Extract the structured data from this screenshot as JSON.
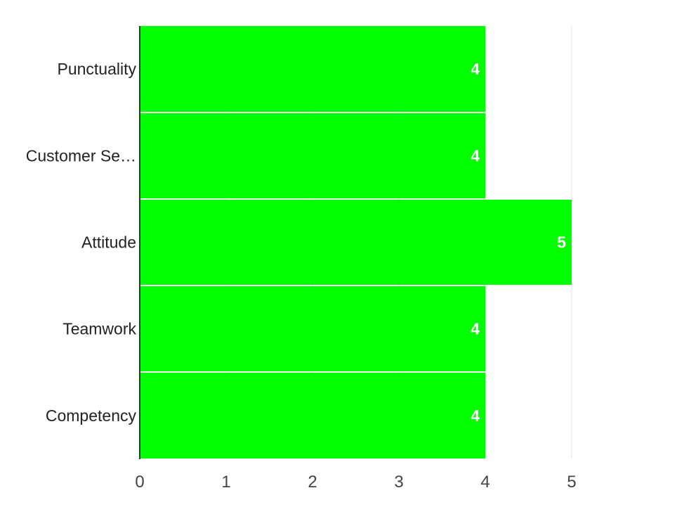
{
  "chart_data": {
    "type": "bar",
    "orientation": "horizontal",
    "categories": [
      "Punctuality",
      "Customer Se…",
      "Attitude",
      "Teamwork",
      "Competency"
    ],
    "values": [
      4,
      4,
      5,
      4,
      4
    ],
    "data_labels": [
      "4",
      "4",
      "5",
      "4",
      "4"
    ],
    "x_ticks": [
      "0",
      "1",
      "2",
      "3",
      "4",
      "5"
    ],
    "xlim": [
      0,
      5
    ],
    "grid": "vertical",
    "legend": "none",
    "bar_color": "#00ff00",
    "data_label_color": "#ffffff"
  }
}
